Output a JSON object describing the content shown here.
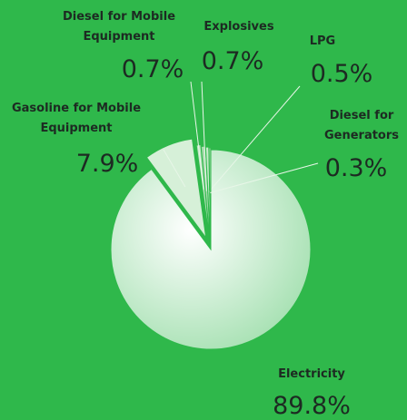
{
  "chart_data": {
    "type": "pie",
    "categories": [
      "Electricity",
      "Gasoline for Mobile Equipment",
      "Diesel for Mobile Equipment",
      "Explosives",
      "LPG",
      "Diesel for Generators"
    ],
    "values": [
      89.8,
      7.9,
      0.7,
      0.7,
      0.5,
      0.3
    ],
    "value_labels": [
      "89.8%",
      "7.9%",
      "0.7%",
      "0.7%",
      "0.5%",
      "0.3%"
    ],
    "colors": [
      "#f2faf2",
      "#d6f0d8",
      "#bfe6c3",
      "#a9dcae",
      "#c8eccb",
      "#9fd6a5"
    ]
  }
}
